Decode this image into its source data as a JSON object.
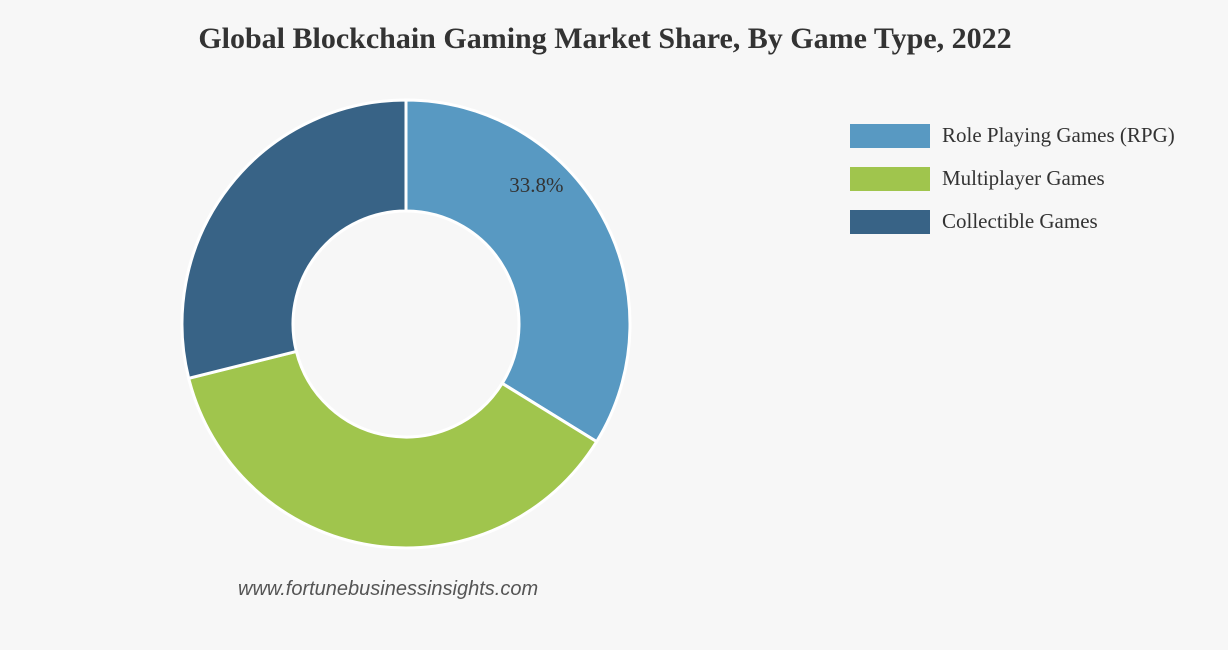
{
  "chart_data": {
    "type": "pie",
    "title": "Global Blockchain Gaming Market Share, By Game Type, 2022",
    "donut": true,
    "categories": [
      "Role Playing Games (RPG)",
      "Multiplayer Games",
      "Collectible Games"
    ],
    "values": [
      33.8,
      37.3,
      28.9
    ],
    "colors": [
      "#5899c2",
      "#a0c54d",
      "#386386"
    ],
    "data_labels": [
      "33.8%",
      "",
      ""
    ],
    "legend_position": "top-right",
    "source": "www.fortunebusinessinsights.com"
  }
}
